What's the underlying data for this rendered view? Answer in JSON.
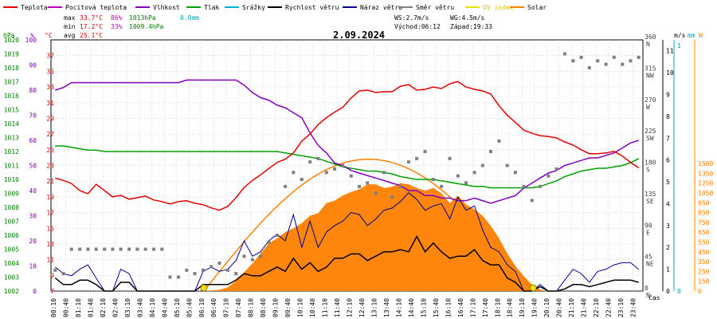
{
  "legend": [
    {
      "label": "Teplota",
      "color": "#e00000",
      "name": "legend-teplota"
    },
    {
      "label": "Pocitová teplota",
      "color": "#c000c0",
      "name": "legend-pocitova-teplota"
    },
    {
      "label": "Vlhkost",
      "color": "#8000c0",
      "name": "legend-vlhkost"
    },
    {
      "label": "Tlak",
      "color": "#00a000",
      "name": "legend-tlak"
    },
    {
      "label": "Srážky",
      "color": "#00b0d0",
      "name": "legend-srazky"
    },
    {
      "label": "Rychlost větru",
      "color": "#000000",
      "name": "legend-rychlost-vetru"
    },
    {
      "label": "Náraz větru",
      "color": "#000090",
      "name": "legend-naraz-vetru"
    },
    {
      "label": "Směr větru",
      "color": "#808080",
      "name": "legend-smer-vetru"
    },
    {
      "label": "UV index",
      "color": "#f0e000",
      "name": "legend-uv-index"
    },
    {
      "label": "Solar",
      "color": "#ff8000",
      "name": "legend-solar"
    }
  ],
  "stats": {
    "max_label": "max",
    "max_temp": "33.7°C",
    "max_hum": "86%",
    "max_press": "1013hPa",
    "max_rain": "0.0mm",
    "min_label": "min",
    "min_temp": "17.2°C",
    "min_hum": "33%",
    "min_press": "1009.4hPa",
    "avg_label": "avg",
    "avg_temp": "25.1°C",
    "ws": "WS:2.7m/s",
    "wg": "WG:4.5m/s",
    "sunrise": "Východ:06:12",
    "sunset": "Západ:19:33"
  },
  "date": "2.09.2024",
  "axis_units": {
    "hpa": "hPa",
    "pct": "%",
    "degc": "°C",
    "ms": "m/s",
    "mm": "mm",
    "w": "W",
    "time": "čas"
  },
  "colors": {
    "temp": "#e00000",
    "feels": "#c000c0",
    "hum": "#8000c0",
    "press": "#00a000",
    "rain": "#00b0d0",
    "wind": "#000000",
    "gust": "#000090",
    "dir": "#808080",
    "uv": "#f0e000",
    "solar": "#ff8000",
    "grid": "#b8b8b8"
  },
  "chart_data": {
    "type": "line",
    "title": "2.09.2024",
    "xlabel": "čas",
    "x_ticks": [
      "00:10",
      "00:40",
      "01:10",
      "01:40",
      "02:10",
      "02:40",
      "03:10",
      "03:40",
      "04:10",
      "04:40",
      "05:10",
      "05:40",
      "06:10",
      "06:40",
      "07:10",
      "07:40",
      "08:10",
      "08:40",
      "09:10",
      "09:40",
      "10:10",
      "10:40",
      "11:10",
      "11:40",
      "12:10",
      "12:40",
      "13:10",
      "13:40",
      "14:10",
      "14:40",
      "15:10",
      "15:40",
      "16:10",
      "16:40",
      "17:10",
      "17:40",
      "18:10",
      "18:40",
      "19:10",
      "19:40",
      "20:10",
      "20:40",
      "21:10",
      "21:40",
      "22:10",
      "22:40",
      "23:10",
      "23:40"
    ],
    "axes": {
      "pressure_hpa": {
        "ticks": [
          "1002",
          "1003",
          "1004",
          "1005",
          "1006",
          "1007",
          "1008",
          "1009",
          "1010",
          "1011",
          "1012",
          "1013",
          "1014",
          "1015",
          "1016",
          "1017",
          "1018",
          "1019",
          "1020"
        ],
        "range": [
          1002,
          1020
        ]
      },
      "humidity_pct": {
        "ticks": [
          "0",
          "10",
          "20",
          "30",
          "40",
          "50",
          "60",
          "70",
          "80",
          "90",
          "100"
        ],
        "range": [
          0,
          100
        ]
      },
      "temperature_c": {
        "ticks": [
          "7",
          "9",
          "11",
          "13",
          "15",
          "17",
          "19",
          "21",
          "23",
          "25",
          "27",
          "29",
          "31",
          "33",
          "35",
          "37"
        ],
        "range": [
          7,
          39
        ]
      },
      "wind_dir": {
        "ticks": [
          "0 N",
          "45 NE",
          "90 E",
          "135 SE",
          "180 S",
          "225 SW",
          "270 W",
          "315 NW",
          "360 N"
        ],
        "range": [
          0,
          360
        ]
      },
      "wind_ms": {
        "ticks": [
          "0",
          "1",
          "2",
          "3",
          "4",
          "5",
          "6",
          "7",
          "8",
          "9",
          "10",
          "11"
        ],
        "range": [
          0,
          11.5
        ]
      },
      "rain_mm": {
        "ticks": [
          "0",
          "1"
        ],
        "range": [
          0,
          1
        ]
      },
      "solar_w": {
        "ticks": [
          "0",
          "150",
          "250",
          "350",
          "450",
          "550",
          "650",
          "750",
          "850",
          "950",
          "1050",
          "1250",
          "1350",
          "1500"
        ],
        "range": [
          0,
          2000
        ]
      }
    },
    "time_hours": [
      0.17,
      0.5,
      0.83,
      1.17,
      1.5,
      1.83,
      2.17,
      2.5,
      2.83,
      3.17,
      3.5,
      3.83,
      4.17,
      4.5,
      4.83,
      5.17,
      5.5,
      5.83,
      6.17,
      6.5,
      6.83,
      7.17,
      7.5,
      7.83,
      8.17,
      8.5,
      8.83,
      9.17,
      9.5,
      9.83,
      10.17,
      10.5,
      10.83,
      11.17,
      11.5,
      11.83,
      12.17,
      12.5,
      12.83,
      13.17,
      13.5,
      13.83,
      14.17,
      14.5,
      14.83,
      15.17,
      15.5,
      15.83,
      16.17,
      16.5,
      16.83,
      17.17,
      17.5,
      17.83,
      18.17,
      18.5,
      18.83,
      19.17,
      19.5,
      19.83,
      20.17,
      20.5,
      20.83,
      21.17,
      21.5,
      21.83,
      22.17,
      22.5,
      22.83,
      23.17,
      23.5,
      23.83
    ],
    "series": [
      {
        "name": "Teplota",
        "unit": "°C",
        "values": [
          21.4,
          21.1,
          20.7,
          19.8,
          19.4,
          20.6,
          19.8,
          19.0,
          19.2,
          18.7,
          18.9,
          19.1,
          18.6,
          18.4,
          18.1,
          18.4,
          18.5,
          18.2,
          18.0,
          17.6,
          17.3,
          17.8,
          18.9,
          20.2,
          21.1,
          21.8,
          22.6,
          23.4,
          23.8,
          24.6,
          26.1,
          27.0,
          28.2,
          29.1,
          29.8,
          30.4,
          31.6,
          32.5,
          32.6,
          32.3,
          32.4,
          32.4,
          33.1,
          33.3,
          32.6,
          32.7,
          33.0,
          32.8,
          33.4,
          33.7,
          33.0,
          32.7,
          32.5,
          32.1,
          30.6,
          29.4,
          28.5,
          27.5,
          27.1,
          26.8,
          26.7,
          26.5,
          26.0,
          25.6,
          25.0,
          24.5,
          24.5,
          24.6,
          24.8,
          24.2,
          23.4,
          22.7
        ]
      },
      {
        "name": "Vlhkost",
        "unit": "%",
        "values": [
          80,
          81,
          83,
          83,
          83,
          83,
          83,
          83,
          83,
          83,
          83,
          83,
          83,
          83,
          83,
          83,
          84,
          84,
          84,
          84,
          84,
          84,
          84,
          82,
          79,
          77,
          76,
          74,
          73,
          71,
          69,
          63,
          58,
          55,
          51,
          50,
          48,
          47,
          46,
          45,
          44,
          43,
          42,
          40,
          40,
          38,
          38,
          37,
          37,
          36,
          36,
          37,
          36,
          35,
          36,
          37,
          38,
          41,
          43,
          45,
          47,
          48,
          50,
          51,
          52,
          53,
          53,
          54,
          55,
          57,
          59,
          60
        ]
      },
      {
        "name": "Tlak",
        "unit": "hPa",
        "values": [
          1012.4,
          1012.4,
          1012.3,
          1012.2,
          1012.1,
          1012.1,
          1012.0,
          1012.0,
          1012.0,
          1012.0,
          1012.0,
          1012.0,
          1012.0,
          1012.0,
          1012.0,
          1012.0,
          1012.0,
          1012.0,
          1012.0,
          1012.0,
          1012.0,
          1012.0,
          1012.0,
          1012.0,
          1012.0,
          1012.0,
          1012.0,
          1012.0,
          1011.9,
          1011.8,
          1011.7,
          1011.6,
          1011.5,
          1011.3,
          1011.1,
          1010.9,
          1010.8,
          1010.7,
          1010.6,
          1010.6,
          1010.5,
          1010.4,
          1010.2,
          1010.1,
          1010.0,
          1010.0,
          1010.0,
          1009.9,
          1009.8,
          1009.7,
          1009.6,
          1009.5,
          1009.5,
          1009.4,
          1009.4,
          1009.4,
          1009.4,
          1009.4,
          1009.4,
          1009.5,
          1009.7,
          1009.9,
          1010.2,
          1010.4,
          1010.6,
          1010.7,
          1010.8,
          1010.8,
          1010.9,
          1011.0,
          1011.2,
          1011.5
        ]
      },
      {
        "name": "Rychlost větru",
        "unit": "m/s",
        "values": [
          0.6,
          0.3,
          0.3,
          0.5,
          0.5,
          0.3,
          0,
          0,
          0.4,
          0.4,
          0,
          0,
          0,
          0,
          0,
          0,
          0,
          0,
          0.3,
          0.3,
          0.3,
          0.3,
          0.5,
          0.8,
          0.7,
          0.7,
          0.9,
          1.1,
          0.9,
          1.5,
          1.0,
          1.3,
          0.9,
          1.1,
          1.5,
          1.5,
          1.7,
          1.7,
          1.4,
          1.6,
          1.8,
          1.8,
          1.9,
          1.8,
          2.5,
          1.8,
          2.2,
          1.8,
          1.5,
          1.6,
          1.6,
          1.9,
          1.4,
          1.2,
          1.2,
          0.6,
          0.4,
          0,
          0,
          0.2,
          0,
          0,
          0.1,
          0.3,
          0.3,
          0.2,
          0.3,
          0.4,
          0.5,
          0.5,
          0.5,
          0.4
        ]
      },
      {
        "name": "Náraz větru",
        "unit": "m/s",
        "values": [
          1.1,
          0.8,
          0.7,
          1.0,
          1.2,
          0.6,
          0,
          0,
          1.0,
          0.8,
          0,
          0,
          0,
          0,
          0,
          0,
          0,
          0,
          0.9,
          1.1,
          0.9,
          1.0,
          1.4,
          2.3,
          1.6,
          1.8,
          2.3,
          2.6,
          2.3,
          3.5,
          2.0,
          3.2,
          2.0,
          2.7,
          3.0,
          3.2,
          3.6,
          3.5,
          3.0,
          3.3,
          3.7,
          3.8,
          4.1,
          4.5,
          4.2,
          3.7,
          3.9,
          4.0,
          3.3,
          4.3,
          3.7,
          3.9,
          2.8,
          2.0,
          1.8,
          1.2,
          0.9,
          0,
          0,
          0.3,
          0,
          0,
          0.5,
          1.0,
          0.8,
          0.4,
          0.9,
          1.0,
          1.2,
          1.3,
          1.3,
          1.0
        ]
      },
      {
        "name": "Směr větru",
        "unit": "°",
        "values": [
          30,
          25,
          60,
          60,
          60,
          60,
          60,
          60,
          60,
          60,
          60,
          60,
          60,
          60,
          20,
          20,
          30,
          25,
          30,
          35,
          40,
          30,
          25,
          50,
          45,
          50,
          70,
          80,
          150,
          170,
          160,
          185,
          190,
          170,
          175,
          180,
          165,
          150,
          155,
          140,
          170,
          135,
          150,
          185,
          190,
          200,
          160,
          150,
          190,
          165,
          155,
          170,
          180,
          200,
          215,
          180,
          170,
          150,
          130,
          150,
          165,
          175,
          340,
          330,
          335,
          320,
          330,
          325,
          335,
          325,
          330,
          335
        ]
      },
      {
        "name": "Solar",
        "unit": "W",
        "values": [
          0,
          0,
          0,
          0,
          0,
          0,
          0,
          0,
          0,
          0,
          0,
          0,
          0,
          0,
          0,
          0,
          0,
          0,
          0,
          5,
          10,
          30,
          80,
          150,
          220,
          300,
          380,
          420,
          470,
          500,
          540,
          600,
          620,
          700,
          720,
          760,
          790,
          810,
          850,
          850,
          820,
          830,
          860,
          850,
          820,
          800,
          820,
          780,
          700,
          760,
          690,
          650,
          600,
          520,
          420,
          300,
          200,
          120,
          50,
          10,
          0,
          0,
          0,
          0,
          0,
          0,
          0,
          0,
          0,
          0,
          0,
          0
        ]
      }
    ]
  }
}
